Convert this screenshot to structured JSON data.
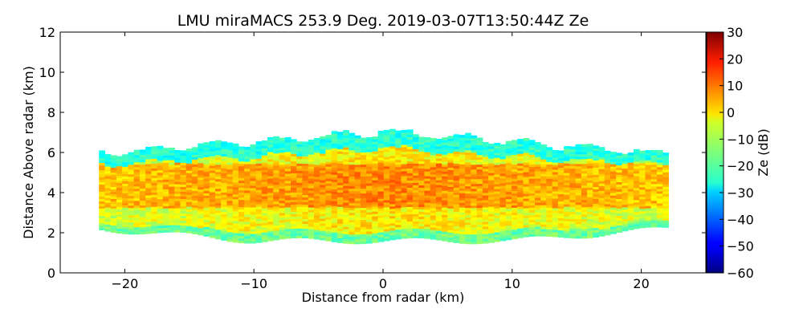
{
  "chart_data": {
    "type": "heatmap",
    "title": "LMU miraMACS 253.9 Deg. 2019-03-07T13:50:44Z  Ze",
    "xlabel": "Distance from radar (km)",
    "ylabel": "Distance Above radar  (km)",
    "xlim": [
      -25,
      25
    ],
    "ylim": [
      0,
      12
    ],
    "x_ticks": [
      -20,
      -10,
      0,
      10,
      20
    ],
    "x_tick_labels": [
      "−20",
      "−10",
      "0",
      "10",
      "20"
    ],
    "y_ticks": [
      0,
      2,
      4,
      6,
      8,
      10,
      12
    ],
    "y_tick_labels": [
      "0",
      "2",
      "4",
      "6",
      "8",
      "10",
      "12"
    ],
    "colorbar": {
      "label": "Ze (dB)",
      "colormap": "jet",
      "range": [
        -60,
        30
      ],
      "ticks": [
        30,
        20,
        10,
        0,
        -10,
        -20,
        -30,
        -40,
        -50,
        -60
      ],
      "tick_labels": [
        "30",
        "20",
        "10",
        "0",
        "−10",
        "−20",
        "−30",
        "−40",
        "−50",
        "−60"
      ]
    },
    "echo_region": {
      "x_range_km": [
        -22,
        22
      ],
      "base_height_km": 2.2,
      "base_height_center_km": 1.6,
      "top_height_edge_km": 5.9,
      "top_height_center_km": 7.0,
      "peak_ze_layer_km": [
        3.2,
        5.4
      ],
      "ze_range_db": [
        -35,
        15
      ],
      "grid_on": false
    }
  }
}
